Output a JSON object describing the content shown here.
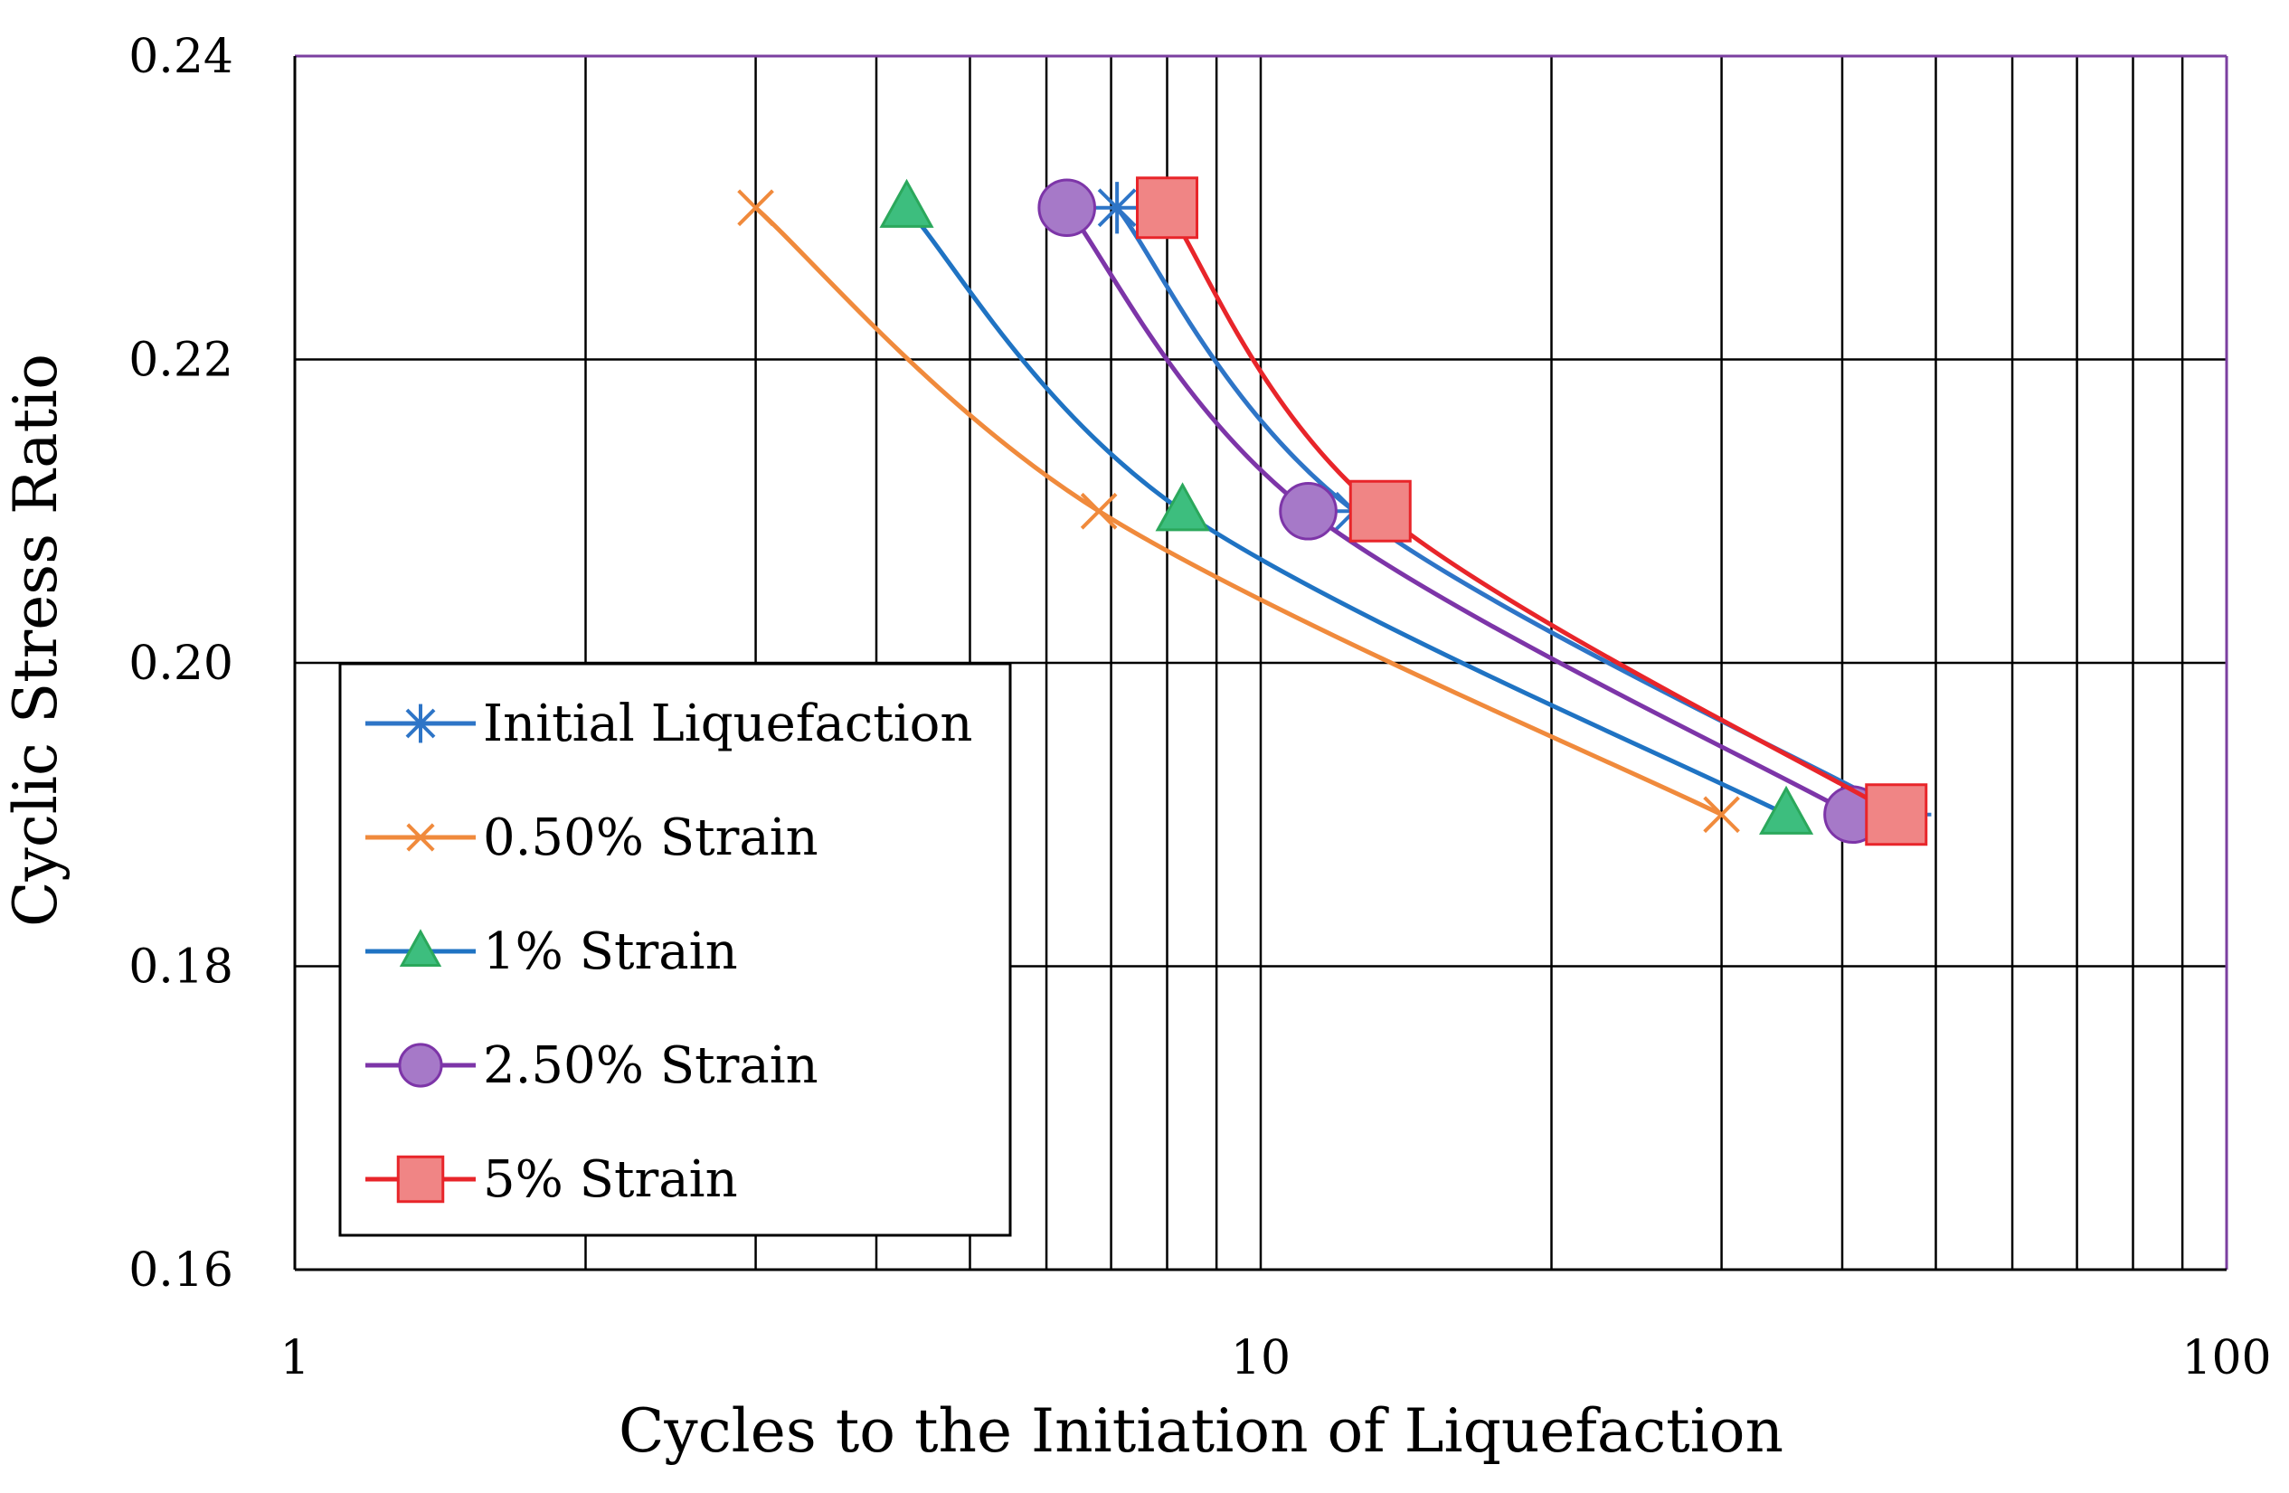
{
  "chart_data": {
    "type": "line",
    "title": "",
    "xlabel": "Cycles to the Initiation of Liquefaction",
    "ylabel": "Cyclic Stress Ratio",
    "xscale": "log",
    "xlim": [
      1,
      100
    ],
    "ylim": [
      0.16,
      0.24
    ],
    "xticks": [
      {
        "value": 1,
        "label": "1"
      },
      {
        "value": 10,
        "label": "10"
      },
      {
        "value": 100,
        "label": "100"
      }
    ],
    "yticks": [
      {
        "value": 0.16,
        "label": "0.16"
      },
      {
        "value": 0.18,
        "label": "0.18"
      },
      {
        "value": 0.2,
        "label": "0.20"
      },
      {
        "value": 0.22,
        "label": "0.22"
      },
      {
        "value": 0.24,
        "label": "0.24"
      }
    ],
    "grid": true,
    "legend_position": "left-bottom",
    "series": [
      {
        "name": "Initial Liquefaction",
        "color": "#2E75C7",
        "marker": "asterisk",
        "points": [
          {
            "x": 7.1,
            "y": 0.23
          },
          {
            "x": 12.5,
            "y": 0.21
          },
          {
            "x": 46.5,
            "y": 0.19
          }
        ]
      },
      {
        "name": "0.50% Strain",
        "color": "#F08A3C",
        "marker": "x",
        "points": [
          {
            "x": 3.0,
            "y": 0.23
          },
          {
            "x": 6.8,
            "y": 0.21
          },
          {
            "x": 30.0,
            "y": 0.19
          }
        ]
      },
      {
        "name": "1% Strain",
        "color": "#1F73C3",
        "marker": "triangle",
        "marker_fill": "#3DBE7E",
        "marker_edge": "#2BA85C",
        "points": [
          {
            "x": 4.3,
            "y": 0.23
          },
          {
            "x": 8.3,
            "y": 0.21
          },
          {
            "x": 35.0,
            "y": 0.19
          }
        ]
      },
      {
        "name": "2.50% Strain",
        "color": "#7D35A8",
        "marker": "circle",
        "marker_fill": "#A679C8",
        "marker_edge": "#7D35A8",
        "points": [
          {
            "x": 6.3,
            "y": 0.23
          },
          {
            "x": 11.2,
            "y": 0.21
          },
          {
            "x": 41.0,
            "y": 0.19
          }
        ]
      },
      {
        "name": "5% Strain",
        "color": "#E8252A",
        "marker": "square",
        "marker_fill": "#F08585",
        "marker_edge": "#E8252A",
        "points": [
          {
            "x": 8.0,
            "y": 0.23
          },
          {
            "x": 13.3,
            "y": 0.21
          },
          {
            "x": 45.5,
            "y": 0.19
          }
        ]
      }
    ],
    "colors": {
      "plot_border": "#7B3FA0",
      "grid": "#000000",
      "legend_border": "#000000"
    }
  }
}
